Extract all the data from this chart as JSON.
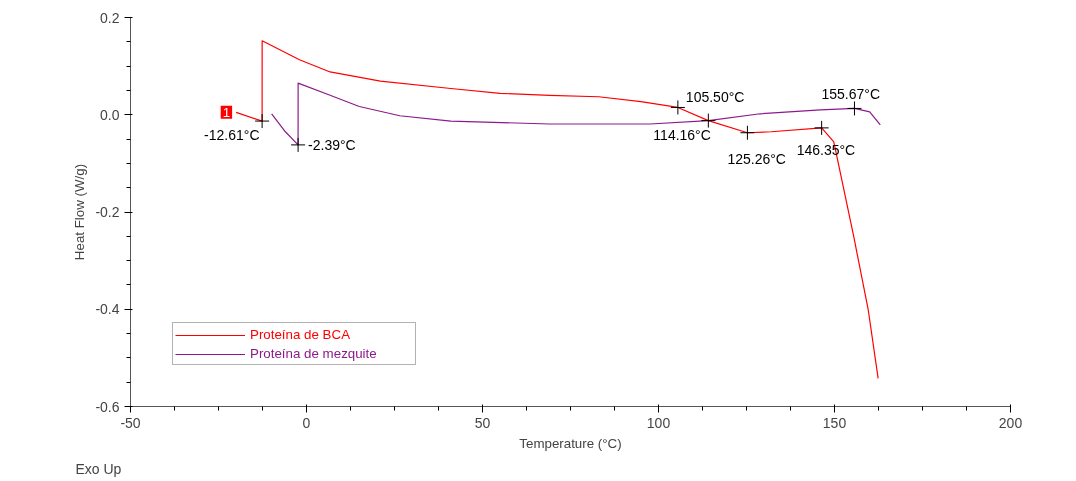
{
  "chart_data": {
    "type": "line",
    "xlabel": "Temperature (°C)",
    "ylabel": "Heat Flow (W/g)",
    "xlim": [
      -50,
      200
    ],
    "xticks": [
      -50,
      0,
      50,
      100,
      150,
      200
    ],
    "ylim": [
      -0.6,
      0.2
    ],
    "yticks": [
      {
        "value": -0.6,
        "label": "-0.6"
      },
      {
        "value": -0.4,
        "label": "-0.4"
      },
      {
        "value": -0.2,
        "label": "-0.2"
      },
      {
        "value": 0,
        "label": "0.0"
      },
      {
        "value": 0.2,
        "label": "0.2"
      }
    ],
    "grid": false,
    "legend": "bottom left",
    "marker": "none",
    "line_style": "solid",
    "series": [
      {
        "name": "Proteína de BCA",
        "color": "#ff0000",
        "x": [
          -20,
          -12.61,
          -12.6,
          -2,
          6.7,
          21,
          41,
          55,
          69,
          83,
          95,
          105.5,
          114.16,
          125.26,
          132,
          146.35,
          149.8,
          155.4,
          159.6,
          162.4
        ],
        "values": [
          0.005,
          -0.013,
          0.152,
          0.113,
          0.088,
          0.069,
          0.054,
          0.044,
          0.04,
          0.037,
          0.027,
          0.015,
          -0.012,
          -0.037,
          -0.035,
          -0.027,
          -0.056,
          -0.248,
          -0.402,
          -0.542
        ]
      },
      {
        "name": "Proteína de mezquite",
        "color": "#8b1a8b",
        "x": [
          -9.9,
          -6,
          -2.39,
          -2.38,
          6.7,
          15,
          26.5,
          41,
          69,
          97.6,
          114.16,
          128.9,
          146,
          155.67,
          160,
          163
        ],
        "values": [
          0.002,
          -0.035,
          -0.062,
          0.065,
          0.04,
          0.017,
          -0.002,
          -0.013,
          -0.019,
          -0.019,
          -0.012,
          0.002,
          0.01,
          0.013,
          0.006,
          -0.021
        ]
      }
    ],
    "annotations": [
      {
        "text": "1",
        "x": -20,
        "y": 0.005
      },
      {
        "text": "-12.61°C",
        "x": -12.61,
        "y": -0.013
      },
      {
        "text": "-2.39°C",
        "x": -2.39,
        "y": -0.062
      },
      {
        "text": "105.50°C",
        "x": 105.5,
        "y": 0.015
      },
      {
        "text": "114.16°C",
        "x": 114.16,
        "y": -0.012
      },
      {
        "text": "125.26°C",
        "x": 125.26,
        "y": -0.037
      },
      {
        "text": "146.35°C",
        "x": 146.35,
        "y": -0.027
      },
      {
        "text": "155.67°C",
        "x": 155.67,
        "y": 0.013
      },
      "Exo Up"
    ]
  }
}
